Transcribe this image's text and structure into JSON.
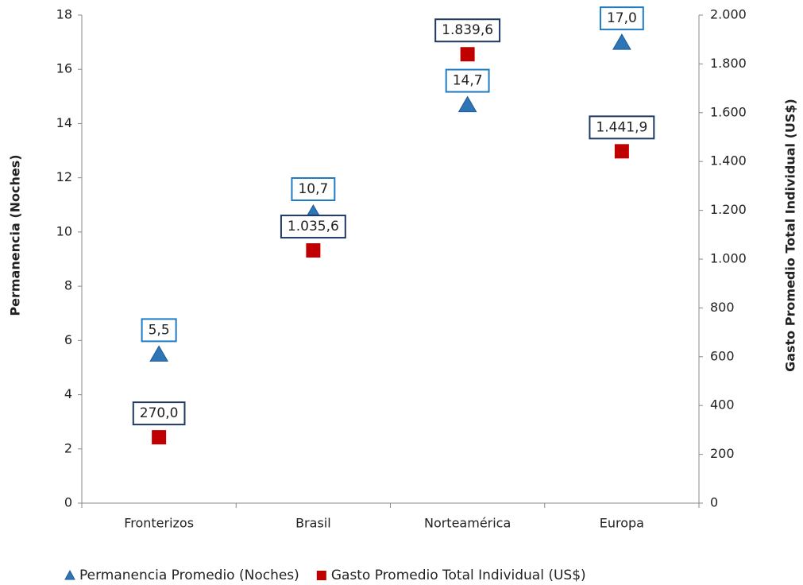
{
  "chart_data": {
    "type": "scatter",
    "categories": [
      "Fronterizos",
      "Brasil",
      "Norteamérica",
      "Europa"
    ],
    "y_label": "Permanencia (Noches)",
    "y2_label": "Gasto Promedio Total Individual (US$)",
    "series": [
      {
        "name": "Permanencia Promedio (Noches)",
        "color": "#2e75b6",
        "marker": "triangle",
        "axis": "y",
        "values": [
          5.5,
          10.7,
          14.7,
          17.0
        ],
        "value_labels": [
          "5,5",
          "10,7",
          "14,7",
          "17,0"
        ]
      },
      {
        "name": "Gasto Promedio Total Individual (US$)",
        "color": "#c00000",
        "marker": "square",
        "axis": "y2",
        "values": [
          270.0,
          1035.6,
          1839.6,
          1441.9
        ],
        "value_labels": [
          "270,0",
          "1.035,6",
          "1.839,6",
          "1.441,9"
        ]
      }
    ],
    "ylim": [
      0,
      18
    ],
    "yticks": [
      0,
      2,
      4,
      6,
      8,
      10,
      12,
      14,
      16,
      18
    ],
    "y2lim": [
      0,
      2000
    ],
    "y2ticks": [
      0,
      200,
      400,
      600,
      800,
      {
        "value": 1000,
        "label": "1.000"
      },
      {
        "value": 1200,
        "label": "1.200"
      },
      {
        "value": 1400,
        "label": "1.400"
      },
      {
        "value": 1600,
        "label": "1.600"
      },
      {
        "value": 1800,
        "label": "1.800"
      },
      {
        "value": 2000,
        "label": "2.000"
      }
    ],
    "legend": "bottom"
  }
}
